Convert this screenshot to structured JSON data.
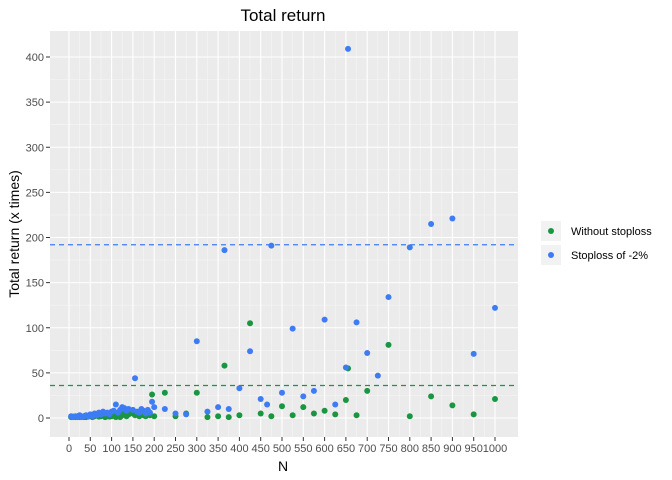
{
  "chart_data": {
    "type": "scatter",
    "title": "Total return",
    "xlabel": "N",
    "ylabel": "Total return (x times)",
    "xlim": [
      0,
      1000
    ],
    "ylim": [
      -10,
      430
    ],
    "x_ticks": [
      0,
      50,
      100,
      150,
      200,
      250,
      300,
      350,
      400,
      450,
      500,
      550,
      600,
      650,
      700,
      750,
      800,
      850,
      900,
      950,
      1000
    ],
    "y_ticks": [
      0,
      50,
      100,
      150,
      200,
      250,
      300,
      350,
      400
    ],
    "grid": true,
    "legend_position": "right",
    "series": [
      {
        "name": "Without stoploss",
        "color": "#1a9641",
        "mean_line": 36,
        "points": [
          [
            5,
            1
          ],
          [
            10,
            1.5
          ],
          [
            15,
            1
          ],
          [
            20,
            2
          ],
          [
            25,
            1
          ],
          [
            30,
            1.5
          ],
          [
            35,
            1
          ],
          [
            40,
            1
          ],
          [
            45,
            1.5
          ],
          [
            50,
            2
          ],
          [
            55,
            1
          ],
          [
            60,
            2
          ],
          [
            65,
            3
          ],
          [
            70,
            1.5
          ],
          [
            75,
            2
          ],
          [
            80,
            3
          ],
          [
            85,
            1
          ],
          [
            90,
            2
          ],
          [
            95,
            1.5
          ],
          [
            100,
            2
          ],
          [
            105,
            3
          ],
          [
            110,
            1
          ],
          [
            115,
            2
          ],
          [
            120,
            1
          ],
          [
            125,
            3
          ],
          [
            130,
            5
          ],
          [
            135,
            2
          ],
          [
            140,
            4
          ],
          [
            145,
            7
          ],
          [
            150,
            5
          ],
          [
            155,
            3
          ],
          [
            160,
            6
          ],
          [
            165,
            2
          ],
          [
            170,
            4
          ],
          [
            175,
            3
          ],
          [
            180,
            2
          ],
          [
            185,
            5
          ],
          [
            190,
            3
          ],
          [
            195,
            26
          ],
          [
            200,
            2
          ],
          [
            225,
            28
          ],
          [
            250,
            2
          ],
          [
            275,
            5
          ],
          [
            300,
            28
          ],
          [
            325,
            1
          ],
          [
            350,
            2
          ],
          [
            365,
            58
          ],
          [
            375,
            1
          ],
          [
            400,
            3
          ],
          [
            425,
            105
          ],
          [
            450,
            5
          ],
          [
            475,
            2
          ],
          [
            500,
            13
          ],
          [
            525,
            3
          ],
          [
            550,
            12
          ],
          [
            575,
            5
          ],
          [
            600,
            8
          ],
          [
            625,
            4
          ],
          [
            650,
            20
          ],
          [
            655,
            55
          ],
          [
            675,
            3
          ],
          [
            700,
            30
          ],
          [
            750,
            81
          ],
          [
            800,
            2
          ],
          [
            850,
            24
          ],
          [
            900,
            14
          ],
          [
            950,
            4
          ],
          [
            1000,
            21
          ]
        ]
      },
      {
        "name": "Stoploss of -2%",
        "color": "#3d7cf2",
        "mean_line": 192,
        "points": [
          [
            5,
            2
          ],
          [
            10,
            1
          ],
          [
            15,
            2
          ],
          [
            20,
            1
          ],
          [
            25,
            3
          ],
          [
            30,
            1
          ],
          [
            35,
            2
          ],
          [
            40,
            3
          ],
          [
            45,
            2
          ],
          [
            50,
            4
          ],
          [
            55,
            2
          ],
          [
            60,
            5
          ],
          [
            65,
            3
          ],
          [
            70,
            6
          ],
          [
            75,
            4
          ],
          [
            80,
            7
          ],
          [
            85,
            5
          ],
          [
            90,
            6
          ],
          [
            95,
            4
          ],
          [
            100,
            7
          ],
          [
            105,
            8
          ],
          [
            110,
            15
          ],
          [
            115,
            6
          ],
          [
            120,
            9
          ],
          [
            125,
            12
          ],
          [
            130,
            11
          ],
          [
            135,
            8
          ],
          [
            140,
            10
          ],
          [
            150,
            9
          ],
          [
            155,
            44
          ],
          [
            160,
            7
          ],
          [
            165,
            6
          ],
          [
            170,
            10
          ],
          [
            175,
            8
          ],
          [
            180,
            5
          ],
          [
            185,
            9
          ],
          [
            190,
            6
          ],
          [
            195,
            18
          ],
          [
            200,
            12
          ],
          [
            225,
            10
          ],
          [
            250,
            5
          ],
          [
            275,
            4
          ],
          [
            300,
            85
          ],
          [
            325,
            7
          ],
          [
            350,
            12
          ],
          [
            365,
            186
          ],
          [
            375,
            10
          ],
          [
            400,
            33
          ],
          [
            425,
            74
          ],
          [
            450,
            21
          ],
          [
            465,
            15
          ],
          [
            475,
            191
          ],
          [
            500,
            28
          ],
          [
            525,
            99
          ],
          [
            550,
            24
          ],
          [
            575,
            30
          ],
          [
            600,
            109
          ],
          [
            625,
            15
          ],
          [
            650,
            56
          ],
          [
            675,
            106
          ],
          [
            655,
            409
          ],
          [
            700,
            72
          ],
          [
            725,
            47
          ],
          [
            750,
            134
          ],
          [
            800,
            189
          ],
          [
            850,
            215
          ],
          [
            900,
            221
          ],
          [
            950,
            71
          ],
          [
            1000,
            122
          ]
        ]
      }
    ]
  }
}
